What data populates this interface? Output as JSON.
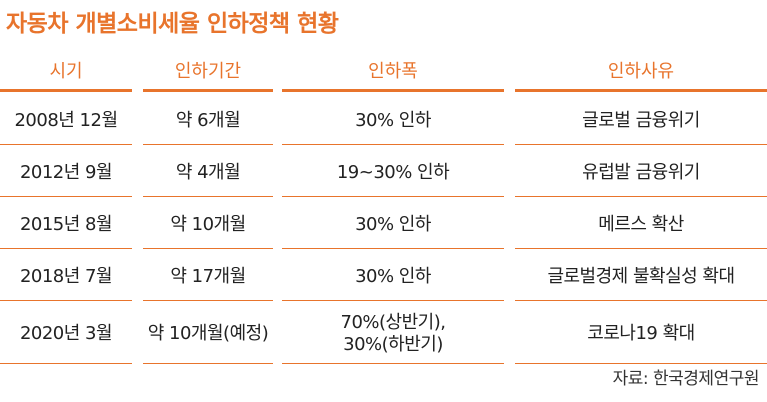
{
  "title": "자동차 개별소비세율 인하정책 현황",
  "headers": [
    "시기",
    "인하기간",
    "인하폭",
    "인하사유"
  ],
  "rows": [
    {
      "period": "2008년 12월",
      "duration": "약 6개월",
      "rate": "30% 인하",
      "rate2": "",
      "reason": "글로벌 금융위기"
    },
    {
      "period": "2012년 9월",
      "duration": "약 4개월",
      "rate": "19~30% 인하",
      "rate2": "",
      "reason": "유럽발 금융위기"
    },
    {
      "period": "2015년 8월",
      "duration": "약 10개월",
      "rate": "30% 인하",
      "rate2": "",
      "reason": "메르스 확산"
    },
    {
      "period": "2018년 7월",
      "duration": "약 17개월",
      "rate": "30% 인하",
      "rate2": "",
      "reason": "글로벌경제 불확실성 확대"
    },
    {
      "period": "2020년 3월",
      "duration": "약 10개월(예정)",
      "rate": "70%(상반기),",
      "rate2": "30%(하반기)",
      "reason": "코로나19 확대"
    }
  ],
  "source": "자료: 한국경제연구원",
  "colors": {
    "accent": "#e8742c",
    "text": "#222222"
  }
}
